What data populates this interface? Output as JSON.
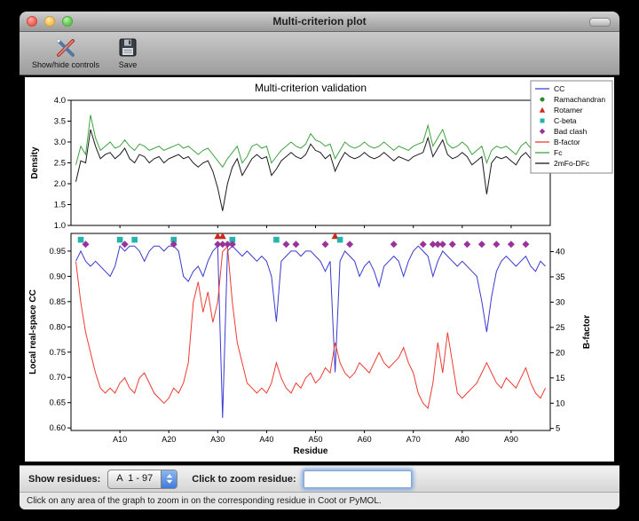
{
  "window": {
    "title": "Multi-criterion plot"
  },
  "toolbar": {
    "buttons": [
      {
        "label": "Show/hide controls"
      },
      {
        "label": "Save"
      }
    ]
  },
  "figure": {
    "title": "Multi-criterion validation"
  },
  "legend": {
    "items": [
      {
        "label": "CC",
        "swatch": "line",
        "color": "#3a3ad1"
      },
      {
        "label": "Ramachandran",
        "swatch": "circle",
        "color": "#2e8b2e"
      },
      {
        "label": "Rotamer",
        "swatch": "triangle",
        "color": "#cc2a1e"
      },
      {
        "label": "C-beta",
        "swatch": "square",
        "color": "#27b3ad"
      },
      {
        "label": "Bad clash",
        "swatch": "diamond",
        "color": "#993299"
      },
      {
        "label": "B-factor",
        "swatch": "line",
        "color": "#ee3b33"
      },
      {
        "label": "Fc",
        "swatch": "line",
        "color": "#3fa23f"
      },
      {
        "label": "2mFo-DFc",
        "swatch": "line",
        "color": "#1a1a1a"
      }
    ]
  },
  "chart_data": [
    {
      "type": "line",
      "ylabel": "Density",
      "ylim": [
        1.0,
        4.0
      ],
      "yticks": [
        1.0,
        1.5,
        2.0,
        2.5,
        3.0,
        3.5,
        4.0
      ],
      "xlim": [
        0,
        98
      ],
      "series": [
        {
          "name": "Fc",
          "color": "#3fa23f",
          "values": [
            2.45,
            2.9,
            2.7,
            3.65,
            3.1,
            2.8,
            2.9,
            3.0,
            2.85,
            2.9,
            3.05,
            2.9,
            2.8,
            2.95,
            2.9,
            2.8,
            2.85,
            2.9,
            2.8,
            2.85,
            2.9,
            2.95,
            2.85,
            2.9,
            2.8,
            2.7,
            2.8,
            2.85,
            2.7,
            2.55,
            2.4,
            2.6,
            2.75,
            2.9,
            2.5,
            2.65,
            2.9,
            2.95,
            2.85,
            2.9,
            2.5,
            2.65,
            2.8,
            2.9,
            3.0,
            2.9,
            2.85,
            2.95,
            3.2,
            3.05,
            3.0,
            2.9,
            2.95,
            2.6,
            2.8,
            3.0,
            2.9,
            2.85,
            2.9,
            3.0,
            2.9,
            2.85,
            2.9,
            3.0,
            2.9,
            2.8,
            2.9,
            2.85,
            2.8,
            2.9,
            2.95,
            3.0,
            3.4,
            2.9,
            3.1,
            3.3,
            2.95,
            2.85,
            2.9,
            3.0,
            2.9,
            2.7,
            2.8,
            2.9,
            2.5,
            2.8,
            2.9,
            2.85,
            2.9,
            2.8,
            2.7,
            2.9,
            3.0,
            2.85,
            2.9,
            3.35,
            3.1
          ]
        },
        {
          "name": "2mFo-DFc",
          "color": "#1a1a1a",
          "values": [
            2.05,
            2.55,
            2.5,
            3.3,
            2.9,
            2.6,
            2.7,
            2.75,
            2.6,
            2.7,
            2.85,
            2.6,
            2.5,
            2.7,
            2.65,
            2.5,
            2.6,
            2.65,
            2.5,
            2.6,
            2.65,
            2.7,
            2.6,
            2.65,
            2.5,
            2.4,
            2.5,
            2.55,
            2.3,
            1.9,
            1.35,
            2.0,
            2.4,
            2.6,
            2.2,
            2.4,
            2.6,
            2.7,
            2.6,
            2.65,
            2.2,
            2.35,
            2.55,
            2.65,
            2.75,
            2.65,
            2.6,
            2.7,
            2.95,
            2.8,
            2.75,
            2.6,
            2.7,
            2.3,
            2.55,
            2.75,
            2.65,
            2.6,
            2.65,
            2.75,
            2.65,
            2.6,
            2.65,
            2.75,
            2.65,
            2.55,
            2.65,
            2.6,
            2.55,
            2.65,
            2.7,
            2.75,
            3.1,
            2.65,
            2.85,
            3.05,
            2.7,
            2.6,
            2.65,
            2.75,
            2.65,
            2.45,
            2.55,
            2.65,
            1.75,
            2.5,
            2.65,
            2.6,
            2.65,
            2.55,
            2.45,
            2.65,
            2.75,
            2.6,
            2.65,
            3.05,
            2.85
          ]
        }
      ]
    },
    {
      "type": "line",
      "xlabel": "Residue",
      "ylabel": "Local real-space CC",
      "ylabel_right": "B-factor",
      "ylim": [
        0.595,
        0.985
      ],
      "yticks": [
        0.6,
        0.65,
        0.7,
        0.75,
        0.8,
        0.85,
        0.9,
        0.95
      ],
      "ylim_right": [
        4.6,
        43.6
      ],
      "yticks_right": [
        5,
        10,
        15,
        20,
        25,
        30,
        35,
        40
      ],
      "xlim": [
        0,
        98
      ],
      "xticks": [
        10,
        20,
        30,
        40,
        50,
        60,
        70,
        80,
        90
      ],
      "xtick_labels": [
        "A10",
        "A20",
        "A30",
        "A40",
        "A50",
        "A60",
        "A70",
        "A80",
        "A90"
      ],
      "series": [
        {
          "name": "CC",
          "axis": "left",
          "color": "#3a3ad1",
          "values": [
            0.93,
            0.95,
            0.93,
            0.92,
            0.93,
            0.92,
            0.91,
            0.9,
            0.92,
            0.96,
            0.95,
            0.96,
            0.96,
            0.95,
            0.93,
            0.95,
            0.96,
            0.96,
            0.95,
            0.96,
            0.96,
            0.95,
            0.9,
            0.89,
            0.91,
            0.92,
            0.9,
            0.93,
            0.95,
            0.96,
            0.62,
            0.95,
            0.96,
            0.95,
            0.94,
            0.95,
            0.94,
            0.93,
            0.94,
            0.93,
            0.9,
            0.81,
            0.93,
            0.94,
            0.95,
            0.95,
            0.94,
            0.95,
            0.95,
            0.94,
            0.93,
            0.91,
            0.93,
            0.71,
            0.93,
            0.95,
            0.94,
            0.93,
            0.9,
            0.92,
            0.93,
            0.91,
            0.88,
            0.92,
            0.93,
            0.94,
            0.93,
            0.9,
            0.93,
            0.95,
            0.96,
            0.95,
            0.94,
            0.9,
            0.93,
            0.95,
            0.94,
            0.93,
            0.92,
            0.93,
            0.92,
            0.91,
            0.9,
            0.85,
            0.79,
            0.86,
            0.91,
            0.93,
            0.94,
            0.93,
            0.92,
            0.93,
            0.94,
            0.92,
            0.91,
            0.93,
            0.92
          ]
        },
        {
          "name": "B-factor",
          "axis": "right",
          "color": "#ee3b33",
          "values": [
            38,
            30,
            24,
            20,
            16,
            13,
            12,
            13,
            12,
            14,
            15,
            13,
            12,
            15,
            16,
            14,
            12,
            11,
            10,
            11,
            13,
            12,
            14,
            18,
            30,
            34,
            28,
            32,
            26,
            30,
            40,
            41,
            30,
            22,
            18,
            14,
            13,
            12,
            13,
            12,
            14,
            18,
            15,
            13,
            12,
            14,
            13,
            15,
            16,
            14,
            15,
            17,
            16,
            22,
            18,
            16,
            15,
            16,
            18,
            17,
            16,
            18,
            20,
            18,
            17,
            18,
            19,
            21,
            18,
            16,
            12,
            10,
            9,
            14,
            22,
            16,
            24,
            18,
            12,
            11,
            12,
            13,
            14,
            16,
            18,
            16,
            14,
            13,
            15,
            14,
            13,
            15,
            17,
            14,
            12,
            11,
            13
          ]
        }
      ],
      "markers": [
        {
          "name": "Rotamer",
          "shape": "triangle",
          "color": "#cc2a1e",
          "y": 0.98,
          "residues": [
            30,
            31,
            54
          ]
        },
        {
          "name": "C-beta",
          "shape": "square",
          "color": "#27b3ad",
          "y": 0.9725,
          "residues": [
            2,
            10,
            13,
            21,
            33,
            42,
            55
          ]
        },
        {
          "name": "Bad clash",
          "shape": "diamond",
          "color": "#993299",
          "y": 0.9635,
          "residues": [
            3,
            11,
            21,
            30,
            31,
            32,
            33,
            44,
            46,
            52,
            57,
            66,
            72,
            74,
            75,
            76,
            78,
            81,
            84,
            87,
            90,
            93
          ]
        }
      ]
    }
  ],
  "controls": {
    "show_residues_label": "Show residues:",
    "residue_range_value": "A  1 - 97",
    "zoom_label": "Click to zoom residue:",
    "zoom_value": ""
  },
  "status_bar": {
    "text": "Click on any area of the graph to zoom in on the corresponding residue in Coot or PyMOL."
  }
}
